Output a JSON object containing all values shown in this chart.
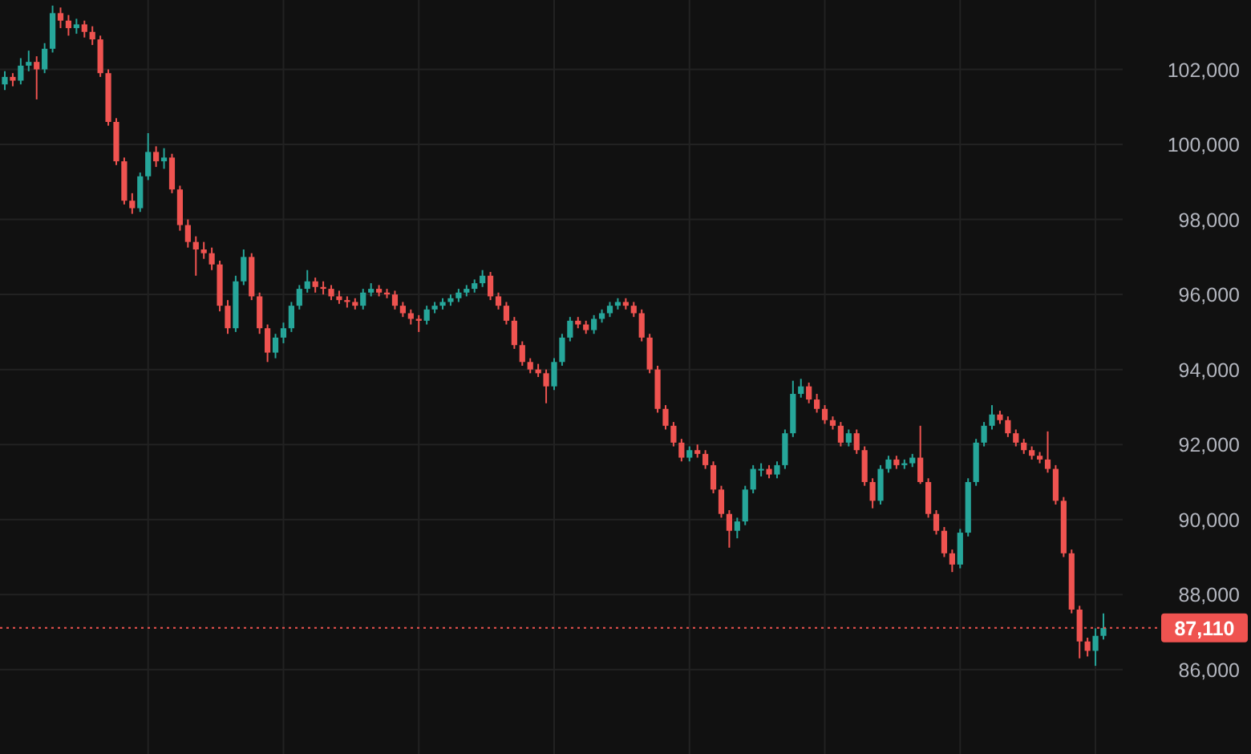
{
  "chart_data": {
    "type": "candlestick",
    "categories": [
      null,
      null,
      null,
      null,
      null,
      null,
      null,
      null,
      null,
      null,
      null,
      null,
      null,
      null,
      null,
      null,
      null,
      null,
      null,
      null,
      null,
      null,
      null,
      null,
      null,
      null,
      null,
      null,
      null,
      null,
      null,
      null,
      null,
      null,
      null,
      null,
      null,
      null,
      null,
      null,
      null,
      null,
      null,
      null,
      null,
      null,
      null,
      null,
      null,
      null,
      null,
      null,
      null,
      null,
      null,
      null,
      null,
      null,
      null,
      null,
      null,
      null,
      null,
      null,
      null,
      null,
      null,
      null,
      null,
      null,
      null,
      null,
      null,
      null,
      null,
      null,
      null,
      null,
      null,
      null,
      null,
      null,
      null,
      null,
      null,
      null,
      null,
      null,
      null,
      null,
      null,
      null,
      null,
      null,
      null,
      null,
      null,
      null,
      null,
      null,
      null,
      null,
      null,
      null,
      null,
      null,
      null,
      null,
      null,
      null,
      null,
      null,
      null,
      null,
      null,
      null,
      null,
      null,
      null,
      null,
      null,
      null,
      null,
      null,
      null,
      null,
      null,
      null,
      null,
      null,
      null,
      null,
      null,
      null,
      null,
      null,
      null,
      null,
      null
    ],
    "ohlc": [
      [
        101600,
        101950,
        101450,
        101800
      ],
      [
        101800,
        101900,
        101550,
        101700
      ],
      [
        101700,
        102300,
        101600,
        102100
      ],
      [
        102100,
        102500,
        101950,
        102200
      ],
      [
        102200,
        102350,
        101200,
        102000
      ],
      [
        102000,
        102700,
        101900,
        102550
      ],
      [
        102550,
        103700,
        102450,
        103500
      ],
      [
        103500,
        103650,
        103100,
        103300
      ],
      [
        103300,
        103450,
        102900,
        103100
      ],
      [
        103100,
        103350,
        102950,
        103200
      ],
      [
        103200,
        103300,
        102850,
        103000
      ],
      [
        103000,
        103150,
        102650,
        102800
      ],
      [
        102800,
        102900,
        101800,
        101900
      ],
      [
        101900,
        102000,
        100500,
        100600
      ],
      [
        100600,
        100700,
        99450,
        99550
      ],
      [
        99550,
        99650,
        98400,
        98500
      ],
      [
        98500,
        98700,
        98150,
        98300
      ],
      [
        98300,
        99250,
        98200,
        99150
      ],
      [
        99150,
        100300,
        99050,
        99800
      ],
      [
        99800,
        99950,
        99400,
        99550
      ],
      [
        99550,
        99900,
        99350,
        99650
      ],
      [
        99650,
        99750,
        98700,
        98800
      ],
      [
        98800,
        98900,
        97700,
        97850
      ],
      [
        97850,
        98000,
        97250,
        97400
      ],
      [
        97400,
        97550,
        96500,
        97200
      ],
      [
        97200,
        97400,
        96950,
        97100
      ],
      [
        97100,
        97250,
        96650,
        96800
      ],
      [
        96800,
        96900,
        95550,
        95700
      ],
      [
        95700,
        95850,
        94950,
        95100
      ],
      [
        95100,
        96500,
        95000,
        96350
      ],
      [
        96350,
        97200,
        96250,
        97000
      ],
      [
        97000,
        97100,
        95850,
        95950
      ],
      [
        95950,
        96050,
        94950,
        95100
      ],
      [
        95100,
        95200,
        94200,
        94450
      ],
      [
        94450,
        94950,
        94300,
        94850
      ],
      [
        94850,
        95250,
        94700,
        95100
      ],
      [
        95100,
        95800,
        95000,
        95700
      ],
      [
        95700,
        96250,
        95600,
        96150
      ],
      [
        96150,
        96650,
        96050,
        96350
      ],
      [
        96350,
        96450,
        96050,
        96200
      ],
      [
        96200,
        96350,
        96000,
        96150
      ],
      [
        96150,
        96250,
        95850,
        95950
      ],
      [
        95950,
        96100,
        95750,
        95850
      ],
      [
        95850,
        95950,
        95650,
        95800
      ],
      [
        95800,
        95900,
        95600,
        95700
      ],
      [
        95700,
        96150,
        95600,
        96050
      ],
      [
        96050,
        96300,
        95950,
        96150
      ],
      [
        96150,
        96250,
        95950,
        96050
      ],
      [
        96050,
        96150,
        95900,
        96000
      ],
      [
        96000,
        96100,
        95600,
        95700
      ],
      [
        95700,
        95800,
        95400,
        95500
      ],
      [
        95500,
        95600,
        95200,
        95350
      ],
      [
        95350,
        95450,
        95000,
        95300
      ],
      [
        95300,
        95700,
        95200,
        95600
      ],
      [
        95600,
        95800,
        95500,
        95700
      ],
      [
        95700,
        95900,
        95600,
        95800
      ],
      [
        95800,
        96000,
        95700,
        95900
      ],
      [
        95900,
        96150,
        95800,
        96050
      ],
      [
        96050,
        96250,
        95950,
        96150
      ],
      [
        96150,
        96400,
        96050,
        96300
      ],
      [
        96300,
        96650,
        96200,
        96500
      ],
      [
        96500,
        96600,
        95850,
        95950
      ],
      [
        95950,
        96050,
        95600,
        95700
      ],
      [
        95700,
        95800,
        95200,
        95300
      ],
      [
        95300,
        95400,
        94550,
        94650
      ],
      [
        94650,
        94750,
        94100,
        94200
      ],
      [
        94200,
        94300,
        93900,
        94000
      ],
      [
        94000,
        94150,
        93800,
        93900
      ],
      [
        93900,
        94000,
        93100,
        93550
      ],
      [
        93550,
        94300,
        93450,
        94200
      ],
      [
        94200,
        94950,
        94100,
        94850
      ],
      [
        94850,
        95400,
        94750,
        95300
      ],
      [
        95300,
        95400,
        95100,
        95200
      ],
      [
        95200,
        95300,
        94950,
        95050
      ],
      [
        95050,
        95450,
        94950,
        95350
      ],
      [
        95350,
        95600,
        95250,
        95500
      ],
      [
        95500,
        95800,
        95400,
        95700
      ],
      [
        95700,
        95900,
        95600,
        95800
      ],
      [
        95800,
        95900,
        95600,
        95700
      ],
      [
        95700,
        95800,
        95400,
        95500
      ],
      [
        95500,
        95600,
        94750,
        94850
      ],
      [
        94850,
        94950,
        93900,
        94000
      ],
      [
        94000,
        94100,
        92850,
        92950
      ],
      [
        92950,
        93050,
        92400,
        92500
      ],
      [
        92500,
        92600,
        91950,
        92050
      ],
      [
        92050,
        92150,
        91550,
        91650
      ],
      [
        91650,
        91950,
        91550,
        91850
      ],
      [
        91850,
        92000,
        91650,
        91750
      ],
      [
        91750,
        91850,
        91350,
        91450
      ],
      [
        91450,
        91550,
        90700,
        90800
      ],
      [
        90800,
        90900,
        90050,
        90150
      ],
      [
        90150,
        90250,
        89250,
        89700
      ],
      [
        89700,
        90050,
        89500,
        89950
      ],
      [
        89950,
        90900,
        89850,
        90800
      ],
      [
        90800,
        91450,
        90700,
        91350
      ],
      [
        91350,
        91500,
        91150,
        91350
      ],
      [
        91350,
        91450,
        91100,
        91200
      ],
      [
        91200,
        91550,
        91100,
        91450
      ],
      [
        91450,
        92400,
        91350,
        92300
      ],
      [
        92300,
        93700,
        92200,
        93350
      ],
      [
        93350,
        93750,
        93250,
        93550
      ],
      [
        93550,
        93650,
        93100,
        93200
      ],
      [
        93200,
        93350,
        92850,
        92950
      ],
      [
        92950,
        93050,
        92550,
        92650
      ],
      [
        92650,
        92750,
        92400,
        92500
      ],
      [
        92500,
        92600,
        91950,
        92050
      ],
      [
        92050,
        92400,
        91950,
        92300
      ],
      [
        92300,
        92400,
        91750,
        91850
      ],
      [
        91850,
        91950,
        90900,
        91000
      ],
      [
        91000,
        91100,
        90300,
        90500
      ],
      [
        90500,
        91450,
        90400,
        91350
      ],
      [
        91350,
        91700,
        91250,
        91600
      ],
      [
        91600,
        91700,
        91350,
        91450
      ],
      [
        91450,
        91600,
        91350,
        91500
      ],
      [
        91500,
        91750,
        91400,
        91650
      ],
      [
        91650,
        92500,
        90950,
        91000
      ],
      [
        91000,
        91100,
        90050,
        90150
      ],
      [
        90150,
        90250,
        89600,
        89700
      ],
      [
        89700,
        89800,
        89000,
        89100
      ],
      [
        89100,
        89200,
        88600,
        88800
      ],
      [
        88800,
        89750,
        88700,
        89650
      ],
      [
        89650,
        91100,
        89550,
        91000
      ],
      [
        91000,
        92150,
        90900,
        92050
      ],
      [
        92050,
        92600,
        91950,
        92500
      ],
      [
        92500,
        93050,
        92400,
        92800
      ],
      [
        92800,
        92900,
        92550,
        92650
      ],
      [
        92650,
        92750,
        92200,
        92300
      ],
      [
        92300,
        92400,
        91950,
        92050
      ],
      [
        92050,
        92150,
        91750,
        91850
      ],
      [
        91850,
        91950,
        91600,
        91700
      ],
      [
        91700,
        91800,
        91500,
        91600
      ],
      [
        91600,
        92350,
        91250,
        91350
      ],
      [
        91350,
        91450,
        90400,
        90500
      ],
      [
        90500,
        90600,
        89000,
        89100
      ],
      [
        89100,
        89200,
        87500,
        87600
      ],
      [
        87600,
        87700,
        86300,
        86750
      ],
      [
        86750,
        86850,
        86350,
        86500
      ],
      [
        86500,
        87100,
        86100,
        86900
      ],
      [
        86900,
        87500,
        86800,
        87110
      ]
    ],
    "ylim": [
      83750,
      103850
    ],
    "yticks": [
      {
        "value": 86000,
        "label": "86,000"
      },
      {
        "value": 88000,
        "label": "88,000"
      },
      {
        "value": 90000,
        "label": "90,000"
      },
      {
        "value": 92000,
        "label": "92,000"
      },
      {
        "value": 94000,
        "label": "94,000"
      },
      {
        "value": 96000,
        "label": "96,000"
      },
      {
        "value": 98000,
        "label": "98,000"
      },
      {
        "value": 100000,
        "label": "100,000"
      },
      {
        "value": 102000,
        "label": "102,000"
      }
    ],
    "ref_lines": [
      {
        "axis": "y",
        "value": 87110,
        "label": "87,110",
        "color": "#ef5350",
        "line_style": "dotted"
      }
    ],
    "grid": true
  }
}
